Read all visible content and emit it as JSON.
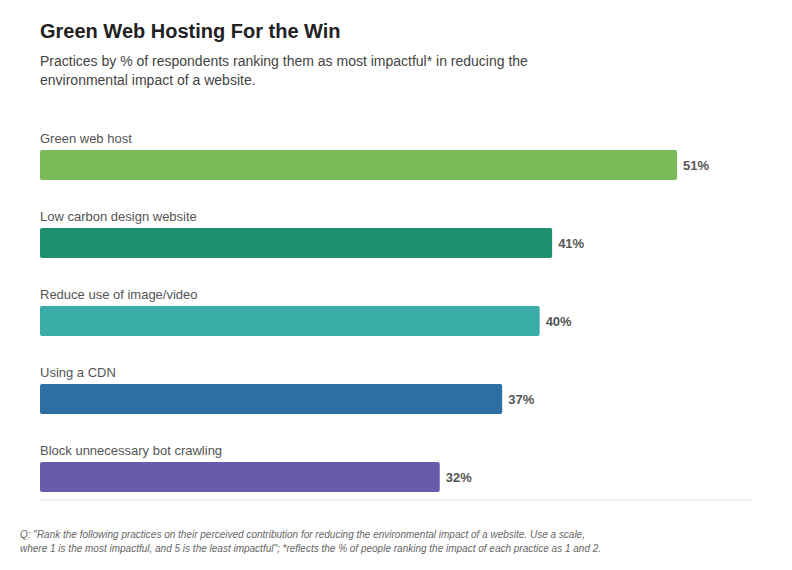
{
  "chart_data": {
    "type": "bar",
    "orientation": "horizontal",
    "title": "Green Web Hosting For the Win",
    "subtitle": "Practices by % of respondents ranking them as most impactful* in reducing the\nenvironmental impact of a website.",
    "footnote": "Q: \"Rank the following practices on their perceived contribution for reducing the environmental impact of a website. Use a scale,\nwhere 1 is the most impactful, and 5 is the least impactful\"; *reflects the % of people ranking the impact of each practice as 1 and 2.",
    "categories": [
      "Green web host",
      "Low carbon design website",
      "Reduce use of image/video",
      "Using a CDN",
      "Block unnecessary bot crawling"
    ],
    "values": [
      51,
      41,
      40,
      37,
      32
    ],
    "value_labels": [
      "51%",
      "41%",
      "40%",
      "37%",
      "32%"
    ],
    "colors": [
      "#7aba57",
      "#1e9070",
      "#3aada8",
      "#2e6fa3",
      "#6a5aab"
    ],
    "xlim": [
      0,
      57
    ],
    "data_labels": true,
    "tick_labels": false,
    "grid": false
  }
}
